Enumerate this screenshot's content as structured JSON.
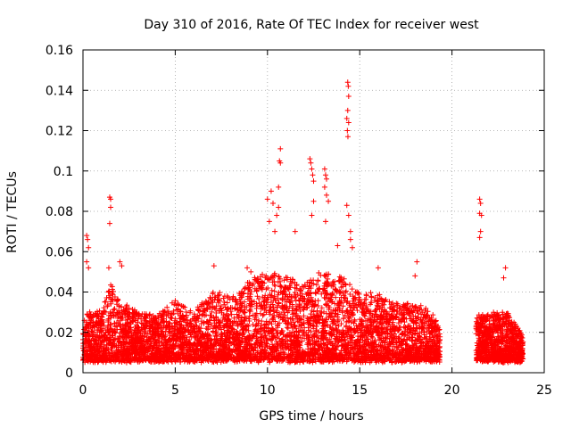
{
  "chart_data": {
    "type": "scatter",
    "title": "Day 310 of 2016, Rate Of TEC Index for receiver west",
    "xlabel": "GPS time / hours",
    "ylabel": "ROTI / TECUs",
    "xlim": [
      0,
      25
    ],
    "ylim": [
      0,
      0.16
    ],
    "grid": true,
    "x_ticks": [
      0,
      5,
      10,
      15,
      20,
      25
    ],
    "x_tick_labels": [
      "0",
      "5",
      "10",
      "15",
      "20",
      "25"
    ],
    "y_ticks": [
      0,
      0.02,
      0.04,
      0.06,
      0.08,
      0.1,
      0.12,
      0.14,
      0.16
    ],
    "y_tick_labels": [
      "0",
      "0.02",
      "0.04",
      "0.06",
      "0.08",
      "0.1",
      "0.12",
      "0.14",
      "0.16"
    ],
    "series": [
      {
        "name": "ROTI",
        "color": "#ff0000",
        "marker": "plus",
        "bands": [
          {
            "x_start": 0.0,
            "x_end": 19.35,
            "count": 5200
          },
          {
            "x_start": 21.3,
            "x_end": 23.85,
            "count": 900
          }
        ],
        "envelope": [
          [
            0.0,
            0.025
          ],
          [
            0.3,
            0.03
          ],
          [
            1.0,
            0.03
          ],
          [
            1.5,
            0.045
          ],
          [
            2.0,
            0.035
          ],
          [
            3.0,
            0.03
          ],
          [
            4.0,
            0.028
          ],
          [
            5.0,
            0.035
          ],
          [
            6.0,
            0.03
          ],
          [
            7.0,
            0.04
          ],
          [
            8.0,
            0.038
          ],
          [
            9.0,
            0.045
          ],
          [
            10.0,
            0.05
          ],
          [
            11.0,
            0.048
          ],
          [
            12.0,
            0.045
          ],
          [
            13.0,
            0.05
          ],
          [
            14.0,
            0.047
          ],
          [
            15.0,
            0.04
          ],
          [
            16.0,
            0.038
          ],
          [
            17.0,
            0.035
          ],
          [
            18.0,
            0.034
          ],
          [
            19.0,
            0.03
          ],
          [
            19.35,
            0.02
          ],
          [
            21.3,
            0.028
          ],
          [
            22.0,
            0.03
          ],
          [
            23.0,
            0.03
          ],
          [
            23.85,
            0.018
          ]
        ],
        "outliers": [
          [
            0.2,
            0.068
          ],
          [
            0.25,
            0.066
          ],
          [
            0.3,
            0.062
          ],
          [
            0.2,
            0.055
          ],
          [
            0.3,
            0.052
          ],
          [
            1.45,
            0.087
          ],
          [
            1.5,
            0.086
          ],
          [
            1.5,
            0.082
          ],
          [
            1.45,
            0.074
          ],
          [
            1.4,
            0.052
          ],
          [
            2.0,
            0.055
          ],
          [
            2.1,
            0.053
          ],
          [
            7.1,
            0.053
          ],
          [
            8.9,
            0.052
          ],
          [
            9.1,
            0.05
          ],
          [
            10.0,
            0.086
          ],
          [
            10.2,
            0.09
          ],
          [
            10.3,
            0.084
          ],
          [
            10.5,
            0.078
          ],
          [
            10.6,
            0.092
          ],
          [
            10.65,
            0.105
          ],
          [
            10.7,
            0.104
          ],
          [
            10.7,
            0.111
          ],
          [
            10.6,
            0.082
          ],
          [
            10.1,
            0.075
          ],
          [
            10.4,
            0.07
          ],
          [
            11.5,
            0.07
          ],
          [
            12.3,
            0.106
          ],
          [
            12.35,
            0.104
          ],
          [
            12.4,
            0.101
          ],
          [
            12.45,
            0.098
          ],
          [
            12.5,
            0.095
          ],
          [
            12.5,
            0.085
          ],
          [
            12.4,
            0.078
          ],
          [
            13.1,
            0.101
          ],
          [
            13.15,
            0.098
          ],
          [
            13.2,
            0.096
          ],
          [
            13.1,
            0.092
          ],
          [
            13.2,
            0.088
          ],
          [
            13.3,
            0.085
          ],
          [
            13.15,
            0.075
          ],
          [
            13.8,
            0.063
          ],
          [
            14.35,
            0.144
          ],
          [
            14.38,
            0.142
          ],
          [
            14.4,
            0.137
          ],
          [
            14.35,
            0.13
          ],
          [
            14.3,
            0.126
          ],
          [
            14.4,
            0.124
          ],
          [
            14.33,
            0.12
          ],
          [
            14.36,
            0.117
          ],
          [
            14.3,
            0.083
          ],
          [
            14.4,
            0.078
          ],
          [
            14.5,
            0.07
          ],
          [
            14.5,
            0.066
          ],
          [
            14.6,
            0.062
          ],
          [
            16.0,
            0.052
          ],
          [
            18.1,
            0.055
          ],
          [
            18.0,
            0.048
          ],
          [
            21.5,
            0.086
          ],
          [
            21.55,
            0.084
          ],
          [
            21.5,
            0.079
          ],
          [
            21.6,
            0.078
          ],
          [
            21.55,
            0.07
          ],
          [
            21.5,
            0.067
          ],
          [
            22.9,
            0.052
          ],
          [
            22.8,
            0.047
          ]
        ]
      }
    ]
  }
}
